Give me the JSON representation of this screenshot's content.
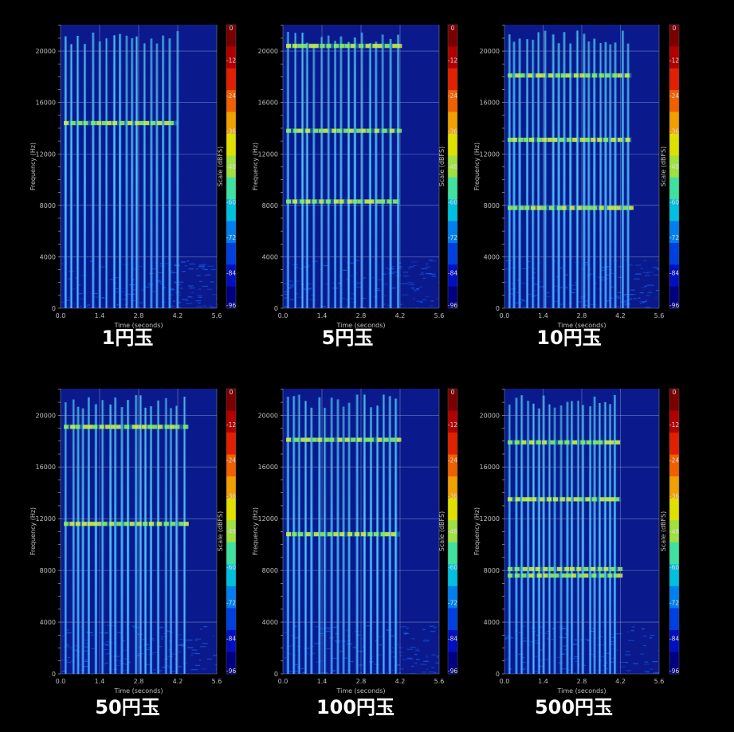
{
  "chart_data": [
    {
      "type": "heatmap",
      "label": "1円玉",
      "xlabel": "Time (seconds)",
      "ylabel": "Frequency (Hz)",
      "colorbar_label": "Scale (dBFS)",
      "x_ticks": [
        "0.0",
        "1.4",
        "2.8",
        "4.2",
        "5.6"
      ],
      "y_ticks": [
        "0",
        "4000",
        "8000",
        "12000",
        "16000",
        "20000"
      ],
      "colorbar_ticks": [
        "0",
        "-12",
        "-24",
        "-36",
        "-48",
        "-60",
        "-72",
        "-84",
        "-96"
      ],
      "xlim": [
        0,
        5.6
      ],
      "ylim": [
        0,
        22050
      ],
      "zlim": [
        -96,
        0
      ],
      "strikes_end_s": 4.2,
      "resonance_bands_hz": [
        14400
      ]
    },
    {
      "type": "heatmap",
      "label": "5円玉",
      "xlabel": "Time (seconds)",
      "ylabel": "Frequency (Hz)",
      "colorbar_label": "Scale (dBFS)",
      "x_ticks": [
        "0.0",
        "1.4",
        "2.8",
        "4.2",
        "5.6"
      ],
      "y_ticks": [
        "0",
        "4000",
        "8000",
        "12000",
        "16000",
        "20000"
      ],
      "colorbar_ticks": [
        "0",
        "-12",
        "-24",
        "-36",
        "-48",
        "-60",
        "-72",
        "-84",
        "-96"
      ],
      "xlim": [
        0,
        5.6
      ],
      "ylim": [
        0,
        22050
      ],
      "zlim": [
        -96,
        0
      ],
      "strikes_end_s": 4.2,
      "resonance_bands_hz": [
        8300,
        13800,
        20400
      ]
    },
    {
      "type": "heatmap",
      "label": "10円玉",
      "xlabel": "Time (seconds)",
      "ylabel": "Frequency (Hz)",
      "colorbar_label": "Scale (dBFS)",
      "x_ticks": [
        "0.0",
        "1.4",
        "2.8",
        "4.2",
        "5.6"
      ],
      "y_ticks": [
        "0",
        "4000",
        "8000",
        "12000",
        "16000",
        "20000"
      ],
      "colorbar_ticks": [
        "0",
        "-12",
        "-24",
        "-36",
        "-48",
        "-60",
        "-72",
        "-84",
        "-96"
      ],
      "xlim": [
        0,
        5.6
      ],
      "ylim": [
        0,
        22050
      ],
      "zlim": [
        -96,
        0
      ],
      "strikes_end_s": 4.6,
      "resonance_bands_hz": [
        7800,
        13100,
        18100
      ]
    },
    {
      "type": "heatmap",
      "label": "50円玉",
      "xlabel": "Time (seconds)",
      "ylabel": "Frequency (Hz)",
      "colorbar_label": "Scale (dBFS)",
      "x_ticks": [
        "0.0",
        "1.4",
        "2.8",
        "4.2",
        "5.6"
      ],
      "y_ticks": [
        "0",
        "4000",
        "8000",
        "12000",
        "16000",
        "20000"
      ],
      "colorbar_ticks": [
        "0",
        "-12",
        "-24",
        "-36",
        "-48",
        "-60",
        "-72",
        "-84",
        "-96"
      ],
      "xlim": [
        0,
        5.6
      ],
      "ylim": [
        0,
        22050
      ],
      "zlim": [
        -96,
        0
      ],
      "strikes_end_s": 4.6,
      "resonance_bands_hz": [
        11600,
        19100
      ]
    },
    {
      "type": "heatmap",
      "label": "100円玉",
      "xlabel": "Time (seconds)",
      "ylabel": "Frequency (Hz)",
      "colorbar_label": "Scale (dBFS)",
      "x_ticks": [
        "0.0",
        "1.4",
        "2.8",
        "4.2",
        "5.6"
      ],
      "y_ticks": [
        "0",
        "4000",
        "8000",
        "12000",
        "16000",
        "20000"
      ],
      "colorbar_ticks": [
        "0",
        "-12",
        "-24",
        "-36",
        "-48",
        "-60",
        "-72",
        "-84",
        "-96"
      ],
      "xlim": [
        0,
        5.6
      ],
      "ylim": [
        0,
        22050
      ],
      "zlim": [
        -96,
        0
      ],
      "strikes_end_s": 4.2,
      "resonance_bands_hz": [
        10800,
        18100
      ]
    },
    {
      "type": "heatmap",
      "label": "500円玉",
      "xlabel": "Time (seconds)",
      "ylabel": "Frequency (Hz)",
      "colorbar_label": "Scale (dBFS)",
      "x_ticks": [
        "0.0",
        "1.4",
        "2.8",
        "4.2",
        "5.6"
      ],
      "y_ticks": [
        "0",
        "4000",
        "8000",
        "12000",
        "16000",
        "20000"
      ],
      "colorbar_ticks": [
        "0",
        "-12",
        "-24",
        "-36",
        "-48",
        "-60",
        "-72",
        "-84",
        "-96"
      ],
      "xlim": [
        0,
        5.6
      ],
      "ylim": [
        0,
        22050
      ],
      "zlim": [
        -96,
        0
      ],
      "strikes_end_s": 4.2,
      "resonance_bands_hz": [
        7600,
        8100,
        13500,
        17900
      ]
    }
  ],
  "colors": {
    "background": "#000000",
    "plot_background": "#0a1a8c",
    "grid": "#8fa0d0",
    "label": "#ffffff",
    "colorbar_scale": [
      "#7a0000",
      "#b00000",
      "#e02000",
      "#f06000",
      "#f0a000",
      "#e0e000",
      "#a0e040",
      "#40e0a0",
      "#00c0e0",
      "#0080f0",
      "#0040e0",
      "#0010c0",
      "#000080"
    ]
  }
}
